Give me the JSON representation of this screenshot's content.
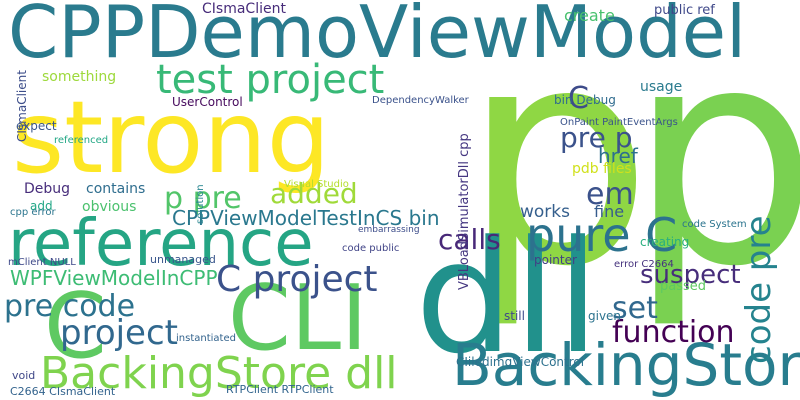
{
  "words": [
    {
      "text": "CPPDemoViewModel",
      "color": "#2a7b8e"
    },
    {
      "text": "p",
      "color": "#8fd744"
    },
    {
      "text": "p",
      "color": "#7ad151"
    },
    {
      "text": "strong",
      "color": "#fde725"
    },
    {
      "text": "reference",
      "color": "#25a584"
    },
    {
      "text": "dll",
      "color": "#21918c"
    },
    {
      "text": "C",
      "color": "#5ec962"
    },
    {
      "text": "CLI",
      "color": "#5ec962"
    },
    {
      "text": "BackingStore",
      "color": "#287d8e"
    },
    {
      "text": "BackingStore dll",
      "color": "#7fd34e"
    },
    {
      "text": "test project",
      "color": "#38b977"
    },
    {
      "text": "pure C",
      "color": "#2c728e"
    },
    {
      "text": "project",
      "color": "#31688e"
    },
    {
      "text": "C project",
      "color": "#3b528b"
    },
    {
      "text": "pre code",
      "color": "#2c728e"
    },
    {
      "text": "calls",
      "color": "#482878"
    },
    {
      "text": "function",
      "color": "#440154"
    },
    {
      "text": "set",
      "color": "#31688e"
    },
    {
      "text": "em",
      "color": "#3b528b"
    },
    {
      "text": "p pre",
      "color": "#52c569"
    },
    {
      "text": "added",
      "color": "#a0da39"
    },
    {
      "text": "CPPViewModelTestInCS bin",
      "color": "#2a788e"
    },
    {
      "text": "WPFViewModelInCPP",
      "color": "#3dbc74"
    },
    {
      "text": "code pre",
      "color": "#25838e"
    },
    {
      "text": "pre p",
      "color": "#3b528b"
    },
    {
      "text": "suspect",
      "color": "#472d7b"
    },
    {
      "text": "C",
      "color": "#3e4c8a"
    },
    {
      "text": "href",
      "color": "#2d708e"
    },
    {
      "text": "CIsmaClient",
      "color": "#472c7a"
    },
    {
      "text": "create",
      "color": "#48c16e"
    },
    {
      "text": "public ref",
      "color": "#3f4889"
    },
    {
      "text": "usage",
      "color": "#2a7b8e"
    },
    {
      "text": "bin Debug",
      "color": "#2f6b8e"
    },
    {
      "text": "something",
      "color": "#9dd93b"
    },
    {
      "text": "CIsmaClient",
      "color": "#3d4e8a"
    },
    {
      "text": "UserControl",
      "color": "#460a5d"
    },
    {
      "text": "pdb files",
      "color": "#d0e11c"
    },
    {
      "text": "works",
      "color": "#355f8d"
    },
    {
      "text": "fine",
      "color": "#365c8d"
    },
    {
      "text": "contains",
      "color": "#2e6d8e"
    },
    {
      "text": "Debug",
      "color": "#472d7b"
    },
    {
      "text": "obvious",
      "color": "#4ac16d"
    },
    {
      "text": "mClient NULL",
      "color": "#3e4989"
    },
    {
      "text": "unmanaged",
      "color": "#39568c"
    },
    {
      "text": "DependencyWalker",
      "color": "#3b528b"
    },
    {
      "text": "OnPaint PaintEventArgs",
      "color": "#3a538b"
    },
    {
      "text": "Visual Studio",
      "color": "#b5de2b"
    },
    {
      "text": "VBLoadSimulatorDll cpp",
      "color": "#453781"
    },
    {
      "text": "CIiledimgViewControl",
      "color": "#2d718e"
    },
    {
      "text": "RTPClient RTPClient",
      "color": "#32658e"
    },
    {
      "text": "C2664 CIsmaClient",
      "color": "#33638d"
    },
    {
      "text": "void",
      "color": "#3f4788"
    },
    {
      "text": "instantiated",
      "color": "#33638d"
    },
    {
      "text": "error C2664",
      "color": "#46337e"
    },
    {
      "text": "pointer",
      "color": "#424086"
    },
    {
      "text": "creating",
      "color": "#29af7f"
    },
    {
      "text": "passed",
      "color": "#5ec962"
    },
    {
      "text": "given",
      "color": "#2c738e"
    },
    {
      "text": "still",
      "color": "#3e4989"
    },
    {
      "text": "code public",
      "color": "#414487"
    },
    {
      "text": "embarrassing",
      "color": "#3d4d8a"
    },
    {
      "text": "solution",
      "color": "#25848e"
    },
    {
      "text": "code System",
      "color": "#2b748e"
    },
    {
      "text": "add",
      "color": "#21a685"
    },
    {
      "text": "cpp error",
      "color": "#2b758e"
    },
    {
      "text": "expect",
      "color": "#39568c"
    },
    {
      "text": "referenced",
      "color": "#22a785"
    }
  ]
}
